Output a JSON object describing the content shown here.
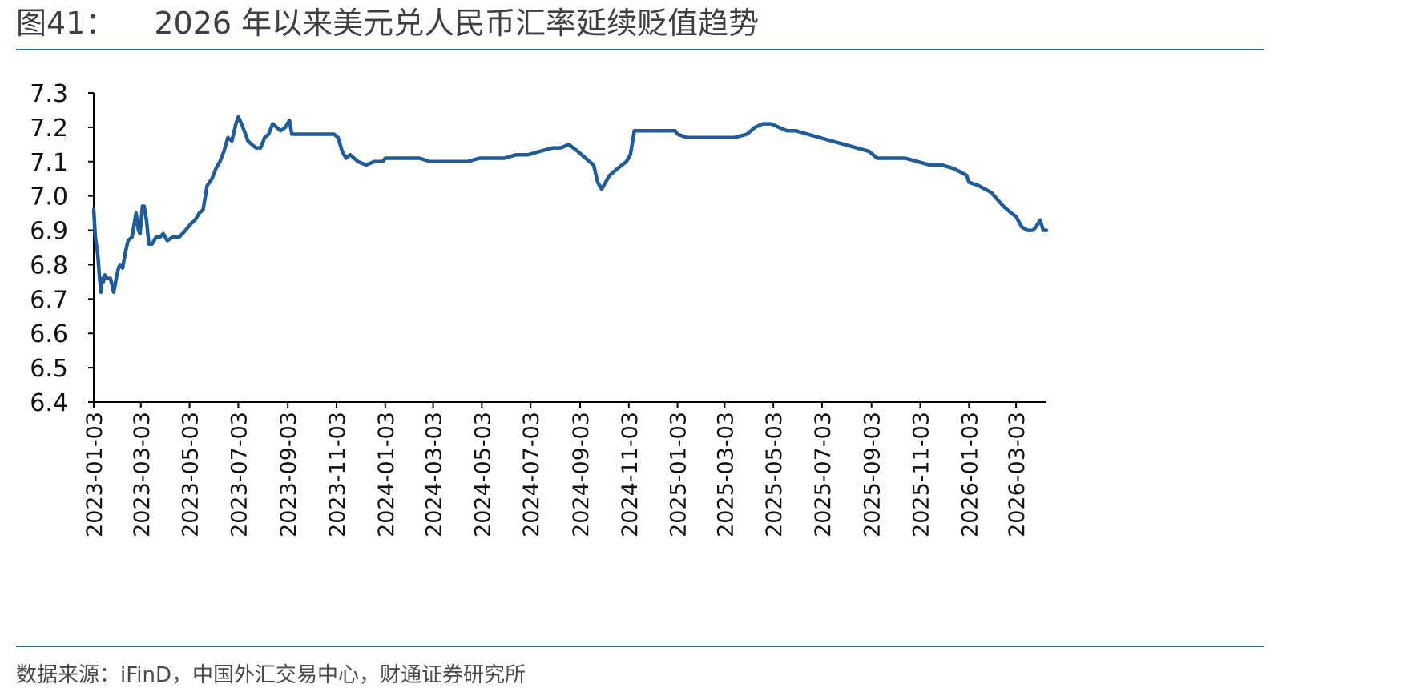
{
  "title": {
    "figure_number": "图41：",
    "text": "2026 年以来美元兑人民币汇率延续贬值趋势"
  },
  "source": "数据来源：iFinD，中国外汇交易中心，财通证券研究所",
  "colors": {
    "rule": "#2f6aa3",
    "line": "#1f5c99",
    "axis": "#000000"
  },
  "chart_data": {
    "type": "line",
    "title": "",
    "xlabel": "",
    "ylabel": "",
    "ylim": [
      6.4,
      7.3
    ],
    "yticks": [
      "6.4",
      "6.5",
      "6.6",
      "6.7",
      "6.8",
      "6.9",
      "7.0",
      "7.1",
      "7.2",
      "7.3"
    ],
    "xlim": [
      "2023-01-03",
      "2026-04-10"
    ],
    "xticks": [
      "2023-01-03",
      "2023-03-03",
      "2023-05-03",
      "2023-07-03",
      "2023-09-03",
      "2023-11-03",
      "2024-01-03",
      "2024-03-03",
      "2024-05-03",
      "2024-07-03",
      "2024-09-03",
      "2024-11-03",
      "2025-01-03",
      "2025-03-03",
      "2025-05-03",
      "2025-07-03",
      "2025-09-03",
      "2025-11-03",
      "2026-01-03",
      "2026-03-03"
    ],
    "grid": false,
    "legend": "none",
    "series": [
      {
        "x": [
          "2023-01-03",
          "2023-01-05",
          "2023-01-08",
          "2023-01-10",
          "2023-01-12",
          "2023-01-13",
          "2023-01-15",
          "2023-01-17",
          "2023-01-20",
          "2023-01-24",
          "2023-01-28",
          "2023-02-01",
          "2023-02-03",
          "2023-02-05",
          "2023-02-08",
          "2023-02-12",
          "2023-02-15",
          "2023-02-20",
          "2023-02-25",
          "2023-02-28",
          "2023-03-02",
          "2023-03-05",
          "2023-03-07",
          "2023-03-10",
          "2023-03-13",
          "2023-03-17",
          "2023-03-22",
          "2023-03-27",
          "2023-03-31",
          "2023-04-05",
          "2023-04-12",
          "2023-04-20",
          "2023-04-28",
          "2023-05-05",
          "2023-05-10",
          "2023-05-15",
          "2023-05-20",
          "2023-05-25",
          "2023-05-31",
          "2023-06-05",
          "2023-06-10",
          "2023-06-15",
          "2023-06-20",
          "2023-06-25",
          "2023-06-30",
          "2023-07-03",
          "2023-07-07",
          "2023-07-12",
          "2023-07-15",
          "2023-07-20",
          "2023-07-25",
          "2023-07-31",
          "2023-08-05",
          "2023-08-10",
          "2023-08-15",
          "2023-08-20",
          "2023-08-25",
          "2023-08-31",
          "2023-09-05",
          "2023-09-08",
          "2023-09-12",
          "2023-09-20",
          "2023-09-30",
          "2023-10-15",
          "2023-10-31",
          "2023-11-05",
          "2023-11-10",
          "2023-11-15",
          "2023-11-20",
          "2023-11-30",
          "2023-12-10",
          "2023-12-20",
          "2023-12-31",
          "2024-01-03",
          "2024-01-15",
          "2024-01-31",
          "2024-02-15",
          "2024-02-28",
          "2024-03-15",
          "2024-03-31",
          "2024-04-15",
          "2024-04-30",
          "2024-05-15",
          "2024-05-31",
          "2024-06-15",
          "2024-06-30",
          "2024-07-15",
          "2024-07-31",
          "2024-08-10",
          "2024-08-20",
          "2024-08-31",
          "2024-09-10",
          "2024-09-20",
          "2024-09-25",
          "2024-09-30",
          "2024-10-10",
          "2024-10-20",
          "2024-10-31",
          "2024-11-05",
          "2024-11-10",
          "2024-11-20",
          "2024-11-30",
          "2024-12-15",
          "2024-12-31",
          "2025-01-03",
          "2025-01-15",
          "2025-01-31",
          "2025-02-15",
          "2025-02-28",
          "2025-03-15",
          "2025-03-31",
          "2025-04-10",
          "2025-04-20",
          "2025-04-30",
          "2025-05-10",
          "2025-05-20",
          "2025-05-31",
          "2025-06-15",
          "2025-06-30",
          "2025-07-15",
          "2025-07-31",
          "2025-08-15",
          "2025-08-31",
          "2025-09-10",
          "2025-09-20",
          "2025-09-30",
          "2025-10-15",
          "2025-10-31",
          "2025-11-15",
          "2025-11-30",
          "2025-12-15",
          "2025-12-31",
          "2026-01-03",
          "2026-01-15",
          "2026-01-31",
          "2026-02-15",
          "2026-02-25",
          "2026-03-03",
          "2026-03-10",
          "2026-03-17",
          "2026-03-24",
          "2026-03-28",
          "2026-04-02",
          "2026-04-06",
          "2026-04-10"
        ],
        "y": [
          6.96,
          6.88,
          6.83,
          6.77,
          6.72,
          6.76,
          6.75,
          6.77,
          6.76,
          6.76,
          6.72,
          6.77,
          6.79,
          6.8,
          6.79,
          6.84,
          6.87,
          6.88,
          6.95,
          6.9,
          6.89,
          6.97,
          6.97,
          6.93,
          6.86,
          6.86,
          6.88,
          6.88,
          6.89,
          6.87,
          6.88,
          6.88,
          6.9,
          6.92,
          6.93,
          6.95,
          6.96,
          7.03,
          7.05,
          7.08,
          7.1,
          7.13,
          7.17,
          7.16,
          7.21,
          7.23,
          7.21,
          7.18,
          7.16,
          7.15,
          7.14,
          7.14,
          7.17,
          7.18,
          7.21,
          7.2,
          7.19,
          7.2,
          7.22,
          7.18,
          7.18,
          7.18,
          7.18,
          7.18,
          7.18,
          7.17,
          7.13,
          7.11,
          7.12,
          7.1,
          7.09,
          7.1,
          7.1,
          7.11,
          7.11,
          7.11,
          7.11,
          7.1,
          7.1,
          7.1,
          7.1,
          7.11,
          7.11,
          7.11,
          7.12,
          7.12,
          7.13,
          7.14,
          7.14,
          7.15,
          7.13,
          7.11,
          7.09,
          7.04,
          7.02,
          7.06,
          7.08,
          7.1,
          7.12,
          7.19,
          7.19,
          7.19,
          7.19,
          7.19,
          7.18,
          7.17,
          7.17,
          7.17,
          7.17,
          7.17,
          7.18,
          7.2,
          7.21,
          7.21,
          7.2,
          7.19,
          7.19,
          7.18,
          7.17,
          7.16,
          7.15,
          7.14,
          7.13,
          7.11,
          7.11,
          7.11,
          7.11,
          7.1,
          7.09,
          7.09,
          7.08,
          7.06,
          7.04,
          7.03,
          7.01,
          6.97,
          6.95,
          6.94,
          6.91,
          6.9,
          6.9,
          6.91,
          6.93,
          6.9,
          6.9
        ]
      }
    ]
  }
}
